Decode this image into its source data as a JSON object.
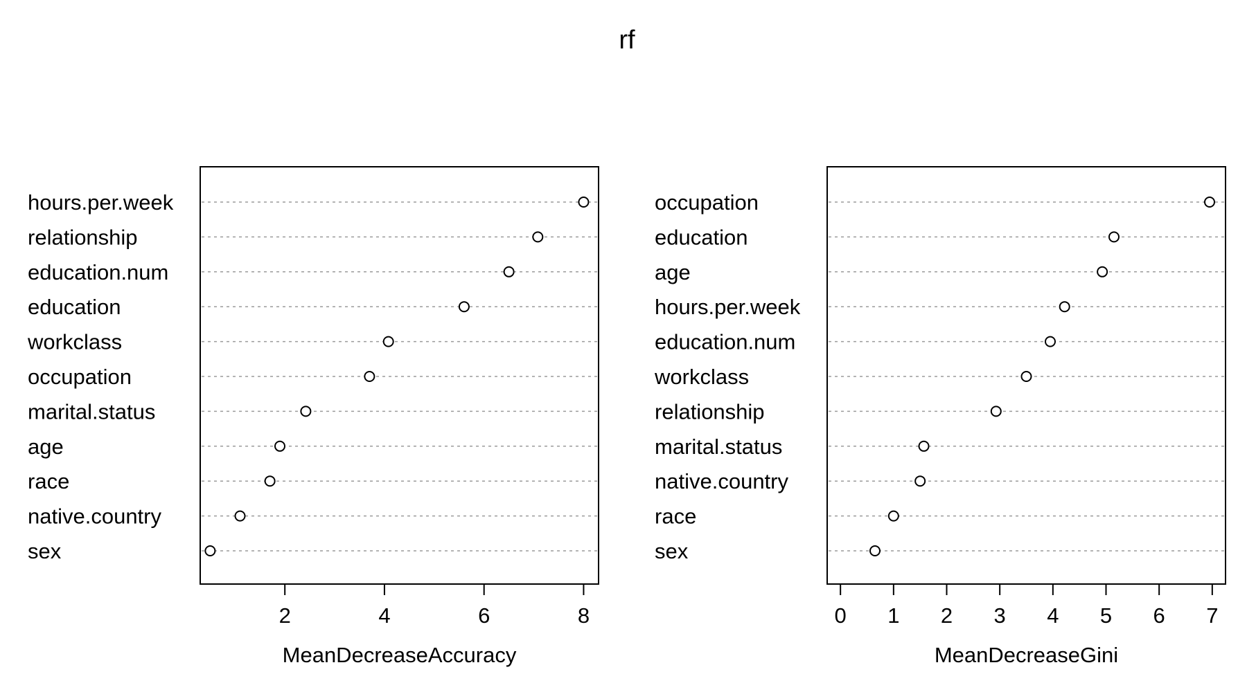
{
  "title": "rf",
  "chart_data": [
    {
      "type": "scatter",
      "style": "dotchart",
      "xlabel": "MeanDecreaseAccuracy",
      "ylabel": "",
      "xticks": [
        2,
        4,
        6,
        8
      ],
      "xlim": [
        0.3,
        8.3
      ],
      "grid": "dashed horizontal guides",
      "categories": [
        "hours.per.week",
        "relationship",
        "education.num",
        "education",
        "workclass",
        "occupation",
        "marital.status",
        "age",
        "race",
        "native.country",
        "sex"
      ],
      "values": [
        8.0,
        7.08,
        6.5,
        5.6,
        4.08,
        3.7,
        2.42,
        1.9,
        1.7,
        1.1,
        0.5
      ]
    },
    {
      "type": "scatter",
      "style": "dotchart",
      "xlabel": "MeanDecreaseGini",
      "ylabel": "",
      "xticks": [
        0,
        1,
        2,
        3,
        4,
        5,
        6,
        7
      ],
      "xlim": [
        -0.25,
        7.25
      ],
      "grid": "dashed horizontal guides",
      "categories": [
        "occupation",
        "education",
        "age",
        "hours.per.week",
        "education.num",
        "workclass",
        "relationship",
        "marital.status",
        "native.country",
        "race",
        "sex"
      ],
      "values": [
        6.95,
        5.15,
        4.93,
        4.22,
        3.95,
        3.5,
        2.93,
        1.57,
        1.5,
        1.0,
        0.65
      ]
    }
  ]
}
